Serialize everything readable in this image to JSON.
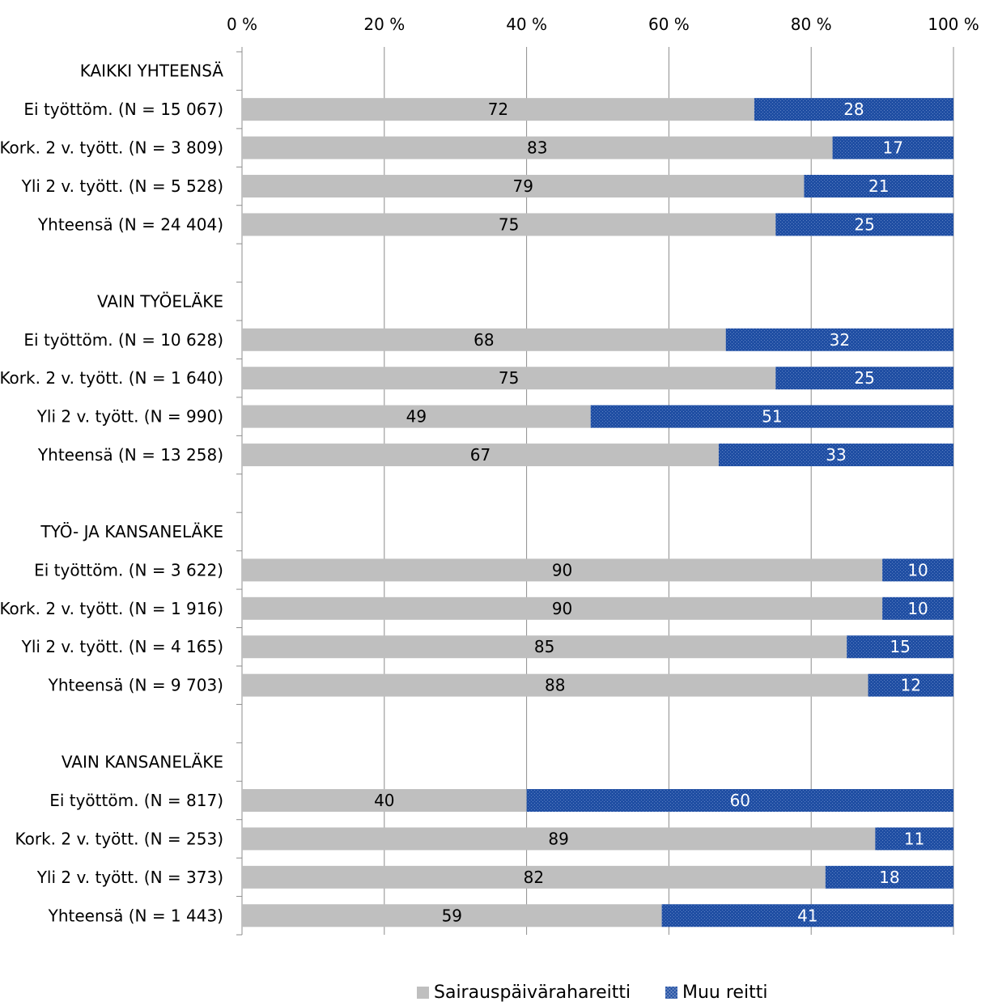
{
  "chart_data": {
    "type": "bar",
    "orientation": "horizontal",
    "stacked": true,
    "xlim": [
      0,
      100
    ],
    "x_ticks": [
      "0 %",
      "20 %",
      "40 %",
      "60 %",
      "80 %",
      "100 %"
    ],
    "grid": true,
    "legend_position": "bottom",
    "colors": {
      "series1": "#bfbfbf",
      "series2": "#1f4ea3"
    },
    "rows": [
      {
        "label": "KAIKKI YHTEENSÄ",
        "header": true
      },
      {
        "label": "Ei työttöm. (N = 15 067)",
        "values": [
          72,
          28
        ]
      },
      {
        "label": "Kork. 2 v. tyött. (N = 3 809)",
        "values": [
          83,
          17
        ]
      },
      {
        "label": "Yli 2 v. tyött. (N = 5 528)",
        "values": [
          79,
          21
        ]
      },
      {
        "label": "Yhteensä (N = 24 404)",
        "values": [
          75,
          25
        ]
      },
      {
        "label": "",
        "spacer": true
      },
      {
        "label": "VAIN TYÖELÄKE",
        "header": true
      },
      {
        "label": "Ei työttöm. (N = 10 628)",
        "values": [
          68,
          32
        ]
      },
      {
        "label": "Kork. 2 v. tyött. (N = 1 640)",
        "values": [
          75,
          25
        ]
      },
      {
        "label": "Yli 2 v. tyött. (N = 990)",
        "values": [
          49,
          51
        ]
      },
      {
        "label": "Yhteensä (N = 13 258)",
        "values": [
          67,
          33
        ]
      },
      {
        "label": "",
        "spacer": true
      },
      {
        "label": "TYÖ- JA KANSANELÄKE",
        "header": true
      },
      {
        "label": "Ei työttöm. (N = 3 622)",
        "values": [
          90,
          10
        ]
      },
      {
        "label": "Kork. 2 v. tyött. (N = 1 916)",
        "values": [
          90,
          10
        ]
      },
      {
        "label": "Yli 2 v. tyött. (N = 4 165)",
        "values": [
          85,
          15
        ]
      },
      {
        "label": "Yhteensä (N = 9 703)",
        "values": [
          88,
          12
        ]
      },
      {
        "label": "",
        "spacer": true
      },
      {
        "label": "VAIN KANSANELÄKE",
        "header": true
      },
      {
        "label": "Ei työttöm. (N = 817)",
        "values": [
          40,
          60
        ]
      },
      {
        "label": "Kork. 2 v. tyött. (N = 253)",
        "values": [
          89,
          11
        ]
      },
      {
        "label": "Yli 2 v. tyött. (N = 373)",
        "values": [
          82,
          18
        ]
      },
      {
        "label": "Yhteensä (N = 1 443)",
        "values": [
          59,
          41
        ]
      }
    ],
    "series": [
      {
        "name": "Sairauspäivärahareitti"
      },
      {
        "name": "Muu reitti"
      }
    ]
  }
}
